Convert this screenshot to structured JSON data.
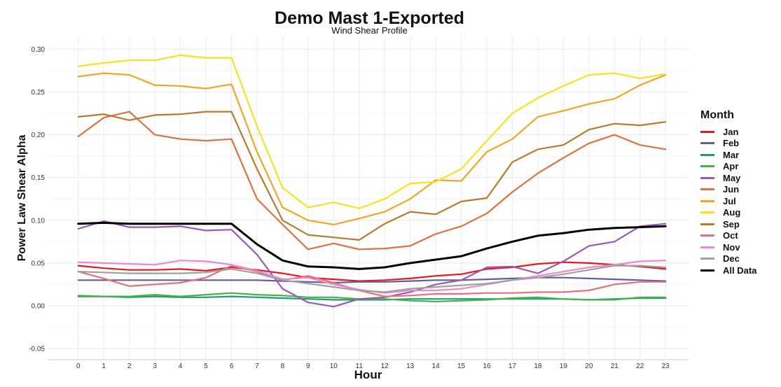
{
  "chart_data": {
    "type": "line",
    "title": "Demo Mast 1-Exported",
    "subtitle": "Wind Shear Profile",
    "xlabel": "Hour",
    "ylabel": "Power Law Shear Alpha",
    "x": [
      0,
      1,
      2,
      3,
      4,
      5,
      6,
      7,
      8,
      9,
      10,
      11,
      12,
      13,
      14,
      15,
      16,
      17,
      18,
      19,
      20,
      21,
      22,
      23
    ],
    "xlim": [
      -1.2,
      23.9
    ],
    "ylim": [
      -0.063,
      0.315
    ],
    "yticks": [
      -0.05,
      0.0,
      0.05,
      0.1,
      0.15,
      0.2,
      0.25,
      0.3
    ],
    "ytick_labels": [
      "-0.05",
      "0.00",
      "0.05",
      "0.10",
      "0.15",
      "0.20",
      "0.25",
      "0.30"
    ],
    "xtick_labels": [
      "0",
      "1",
      "2",
      "3",
      "4",
      "5",
      "6",
      "7",
      "8",
      "9",
      "10",
      "11",
      "12",
      "13",
      "14",
      "15",
      "16",
      "17",
      "18",
      "19",
      "20",
      "21",
      "22",
      "23"
    ],
    "grid": true,
    "legend_title": "Month",
    "legend_position": "right",
    "series": [
      {
        "name": "Jan",
        "color": "#e31a1c",
        "values": [
          0.047,
          0.044,
          0.042,
          0.042,
          0.043,
          0.041,
          0.045,
          0.042,
          0.038,
          0.033,
          0.031,
          0.029,
          0.03,
          0.032,
          0.035,
          0.037,
          0.043,
          0.045,
          0.049,
          0.051,
          0.05,
          0.048,
          0.046,
          0.043
        ]
      },
      {
        "name": "Feb",
        "color": "#5e5ea0",
        "values": [
          0.03,
          0.03,
          0.03,
          0.03,
          0.03,
          0.03,
          0.03,
          0.03,
          0.029,
          0.028,
          0.027,
          0.028,
          0.028,
          0.029,
          0.03,
          0.03,
          0.031,
          0.032,
          0.033,
          0.033,
          0.032,
          0.031,
          0.03,
          0.029
        ]
      },
      {
        "name": "Mar",
        "color": "#1b9e77",
        "values": [
          0.011,
          0.011,
          0.01,
          0.011,
          0.01,
          0.01,
          0.011,
          0.01,
          0.009,
          0.008,
          0.007,
          0.007,
          0.007,
          0.008,
          0.008,
          0.008,
          0.008,
          0.008,
          0.008,
          0.008,
          0.007,
          0.008,
          0.009,
          0.009
        ]
      },
      {
        "name": "Apr",
        "color": "#4daf4a",
        "values": [
          0.012,
          0.011,
          0.011,
          0.013,
          0.011,
          0.013,
          0.015,
          0.013,
          0.012,
          0.01,
          0.01,
          0.008,
          0.008,
          0.006,
          0.005,
          0.006,
          0.007,
          0.009,
          0.01,
          0.008,
          0.007,
          0.007,
          0.01,
          0.01
        ]
      },
      {
        "name": "May",
        "color": "#9b59b6",
        "values": [
          0.09,
          0.099,
          0.092,
          0.092,
          0.093,
          0.088,
          0.089,
          0.06,
          0.02,
          0.004,
          -0.001,
          0.008,
          0.01,
          0.016,
          0.025,
          0.03,
          0.045,
          0.046,
          0.038,
          0.052,
          0.07,
          0.075,
          0.093,
          0.096
        ]
      },
      {
        "name": "Jun",
        "color": "#e07040",
        "values": [
          0.198,
          0.22,
          0.227,
          0.2,
          0.195,
          0.193,
          0.195,
          0.125,
          0.095,
          0.066,
          0.073,
          0.066,
          0.067,
          0.07,
          0.084,
          0.093,
          0.108,
          0.133,
          0.155,
          0.173,
          0.19,
          0.2,
          0.188,
          0.183
        ]
      },
      {
        "name": "Jul",
        "color": "#f2a523",
        "values": [
          0.268,
          0.272,
          0.27,
          0.258,
          0.257,
          0.254,
          0.259,
          0.18,
          0.115,
          0.1,
          0.095,
          0.102,
          0.11,
          0.125,
          0.147,
          0.146,
          0.18,
          0.195,
          0.221,
          0.228,
          0.236,
          0.242,
          0.258,
          0.27
        ]
      },
      {
        "name": "Aug",
        "color": "#f7e21b",
        "values": [
          0.28,
          0.284,
          0.287,
          0.287,
          0.293,
          0.29,
          0.29,
          0.21,
          0.138,
          0.115,
          0.121,
          0.114,
          0.125,
          0.143,
          0.145,
          0.16,
          0.193,
          0.225,
          0.243,
          0.257,
          0.27,
          0.272,
          0.266,
          0.271
        ]
      },
      {
        "name": "Sep",
        "color": "#b87a2b",
        "values": [
          0.221,
          0.224,
          0.217,
          0.223,
          0.224,
          0.227,
          0.227,
          0.16,
          0.1,
          0.083,
          0.08,
          0.077,
          0.096,
          0.11,
          0.107,
          0.122,
          0.126,
          0.168,
          0.183,
          0.188,
          0.206,
          0.213,
          0.211,
          0.215
        ]
      },
      {
        "name": "Oct",
        "color": "#e8707a",
        "values": [
          0.04,
          0.032,
          0.023,
          0.025,
          0.027,
          0.033,
          0.047,
          0.04,
          0.03,
          0.035,
          0.027,
          0.018,
          0.011,
          0.012,
          0.014,
          0.014,
          0.015,
          0.015,
          0.016,
          0.016,
          0.018,
          0.025,
          0.028,
          0.028
        ]
      },
      {
        "name": "Nov",
        "color": "#e88ad0",
        "values": [
          0.051,
          0.05,
          0.049,
          0.048,
          0.053,
          0.052,
          0.048,
          0.041,
          0.031,
          0.033,
          0.025,
          0.019,
          0.015,
          0.018,
          0.018,
          0.02,
          0.025,
          0.03,
          0.035,
          0.04,
          0.045,
          0.048,
          0.052,
          0.053
        ]
      },
      {
        "name": "Dec",
        "color": "#a0a0a0",
        "values": [
          0.04,
          0.039,
          0.038,
          0.038,
          0.038,
          0.039,
          0.043,
          0.038,
          0.03,
          0.026,
          0.022,
          0.018,
          0.016,
          0.02,
          0.022,
          0.024,
          0.026,
          0.03,
          0.033,
          0.037,
          0.042,
          0.047,
          0.047,
          0.045
        ]
      },
      {
        "name": "All Data",
        "color": "#000000",
        "values": [
          0.096,
          0.097,
          0.096,
          0.096,
          0.096,
          0.096,
          0.096,
          0.072,
          0.053,
          0.046,
          0.045,
          0.043,
          0.045,
          0.05,
          0.054,
          0.058,
          0.067,
          0.075,
          0.082,
          0.085,
          0.089,
          0.091,
          0.092,
          0.093
        ]
      }
    ]
  }
}
